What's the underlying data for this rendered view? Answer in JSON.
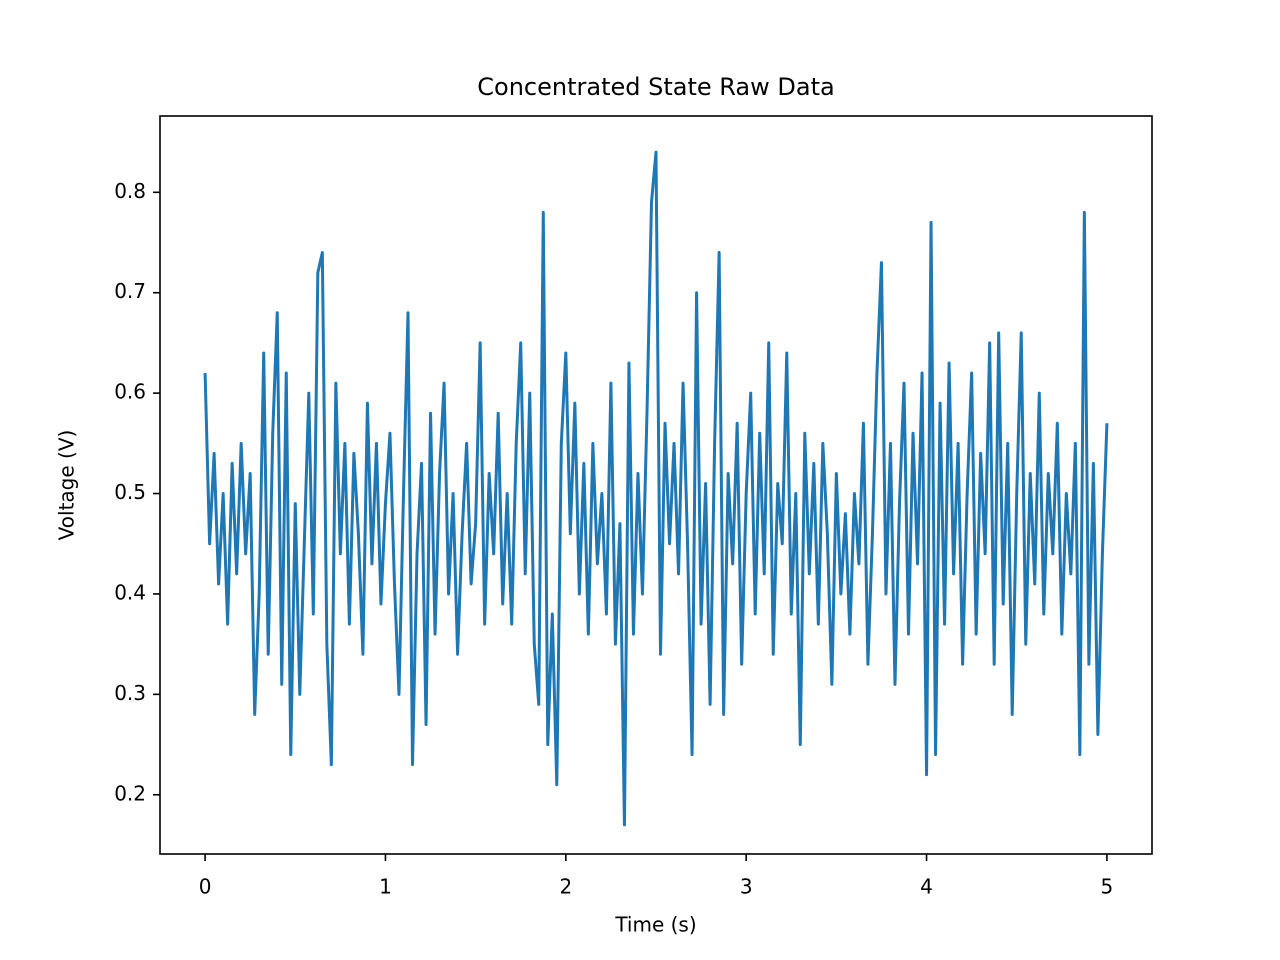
{
  "chart_data": {
    "type": "line",
    "title": "Concentrated State Raw Data",
    "x_label": "Time (s)",
    "y_label": "Voltage (V)",
    "x": [
      0,
      0.025,
      0.05,
      0.075,
      0.1,
      0.125,
      0.15,
      0.175,
      0.2,
      0.225,
      0.25,
      0.275,
      0.3,
      0.325,
      0.35,
      0.375,
      0.4,
      0.425,
      0.45,
      0.475,
      0.5,
      0.525,
      0.55,
      0.575,
      0.6,
      0.625,
      0.65,
      0.675,
      0.7,
      0.725,
      0.75,
      0.775,
      0.8,
      0.825,
      0.85,
      0.875,
      0.9,
      0.925,
      0.95,
      0.975,
      1,
      1.025,
      1.05,
      1.075,
      1.1,
      1.125,
      1.15,
      1.175,
      1.2,
      1.225,
      1.25,
      1.275,
      1.3,
      1.325,
      1.35,
      1.375,
      1.4,
      1.425,
      1.45,
      1.475,
      1.5,
      1.525,
      1.55,
      1.575,
      1.6,
      1.625,
      1.65,
      1.675,
      1.7,
      1.725,
      1.75,
      1.775,
      1.8,
      1.825,
      1.85,
      1.875,
      1.9,
      1.925,
      1.95,
      1.975,
      2,
      2.025,
      2.05,
      2.075,
      2.1,
      2.125,
      2.15,
      2.175,
      2.2,
      2.225,
      2.25,
      2.275,
      2.3,
      2.325,
      2.35,
      2.375,
      2.4,
      2.425,
      2.45,
      2.475,
      2.5,
      2.525,
      2.55,
      2.575,
      2.6,
      2.625,
      2.65,
      2.675,
      2.7,
      2.725,
      2.75,
      2.775,
      2.8,
      2.825,
      2.85,
      2.875,
      2.9,
      2.925,
      2.95,
      2.975,
      3,
      3.025,
      3.05,
      3.075,
      3.1,
      3.125,
      3.15,
      3.175,
      3.2,
      3.225,
      3.25,
      3.275,
      3.3,
      3.325,
      3.35,
      3.375,
      3.4,
      3.425,
      3.45,
      3.475,
      3.5,
      3.525,
      3.55,
      3.575,
      3.6,
      3.625,
      3.65,
      3.675,
      3.7,
      3.725,
      3.75,
      3.775,
      3.8,
      3.825,
      3.85,
      3.875,
      3.9,
      3.925,
      3.95,
      3.975,
      4,
      4.025,
      4.05,
      4.075,
      4.1,
      4.125,
      4.15,
      4.175,
      4.2,
      4.225,
      4.25,
      4.275,
      4.3,
      4.325,
      4.35,
      4.375,
      4.4,
      4.425,
      4.45,
      4.475,
      4.5,
      4.525,
      4.55,
      4.575,
      4.6,
      4.625,
      4.65,
      4.675,
      4.7,
      4.725,
      4.75,
      4.775,
      4.8,
      4.825,
      4.85,
      4.875,
      4.9,
      4.925,
      4.95,
      4.975,
      5
    ],
    "series": [
      {
        "color": "#1f77b4",
        "values": [
          0.62,
          0.45,
          0.54,
          0.41,
          0.5,
          0.37,
          0.53,
          0.42,
          0.55,
          0.44,
          0.52,
          0.28,
          0.4,
          0.64,
          0.34,
          0.56,
          0.68,
          0.31,
          0.62,
          0.24,
          0.49,
          0.3,
          0.45,
          0.6,
          0.38,
          0.72,
          0.74,
          0.35,
          0.23,
          0.61,
          0.44,
          0.55,
          0.37,
          0.54,
          0.46,
          0.34,
          0.59,
          0.43,
          0.55,
          0.39,
          0.49,
          0.56,
          0.41,
          0.3,
          0.5,
          0.68,
          0.23,
          0.44,
          0.53,
          0.27,
          0.58,
          0.36,
          0.52,
          0.61,
          0.4,
          0.5,
          0.34,
          0.46,
          0.55,
          0.41,
          0.47,
          0.65,
          0.37,
          0.52,
          0.44,
          0.58,
          0.39,
          0.5,
          0.37,
          0.55,
          0.65,
          0.42,
          0.6,
          0.35,
          0.29,
          0.78,
          0.25,
          0.38,
          0.21,
          0.55,
          0.64,
          0.46,
          0.59,
          0.4,
          0.53,
          0.36,
          0.55,
          0.43,
          0.5,
          0.38,
          0.61,
          0.35,
          0.47,
          0.17,
          0.63,
          0.36,
          0.52,
          0.4,
          0.58,
          0.79,
          0.84,
          0.34,
          0.57,
          0.45,
          0.55,
          0.42,
          0.61,
          0.45,
          0.24,
          0.7,
          0.37,
          0.51,
          0.29,
          0.55,
          0.74,
          0.28,
          0.52,
          0.43,
          0.57,
          0.33,
          0.5,
          0.6,
          0.38,
          0.56,
          0.42,
          0.65,
          0.34,
          0.51,
          0.45,
          0.64,
          0.38,
          0.5,
          0.25,
          0.56,
          0.42,
          0.53,
          0.37,
          0.55,
          0.46,
          0.31,
          0.52,
          0.4,
          0.48,
          0.36,
          0.5,
          0.43,
          0.57,
          0.33,
          0.46,
          0.62,
          0.73,
          0.4,
          0.55,
          0.31,
          0.49,
          0.61,
          0.36,
          0.56,
          0.43,
          0.62,
          0.22,
          0.77,
          0.24,
          0.59,
          0.37,
          0.63,
          0.42,
          0.55,
          0.33,
          0.5,
          0.62,
          0.36,
          0.54,
          0.44,
          0.65,
          0.33,
          0.66,
          0.39,
          0.55,
          0.28,
          0.5,
          0.66,
          0.35,
          0.52,
          0.41,
          0.6,
          0.38,
          0.52,
          0.44,
          0.57,
          0.36,
          0.5,
          0.42,
          0.55,
          0.24,
          0.78,
          0.33,
          0.53,
          0.26,
          0.44,
          0.57
        ]
      }
    ],
    "xlim": [
      -0.25,
      5.25
    ],
    "ylim": [
      0.141,
      0.876
    ],
    "xticks": [
      0,
      1,
      2,
      3,
      4,
      5
    ],
    "yticks": [
      0.2,
      0.3,
      0.4,
      0.5,
      0.6,
      0.7,
      0.8
    ]
  }
}
